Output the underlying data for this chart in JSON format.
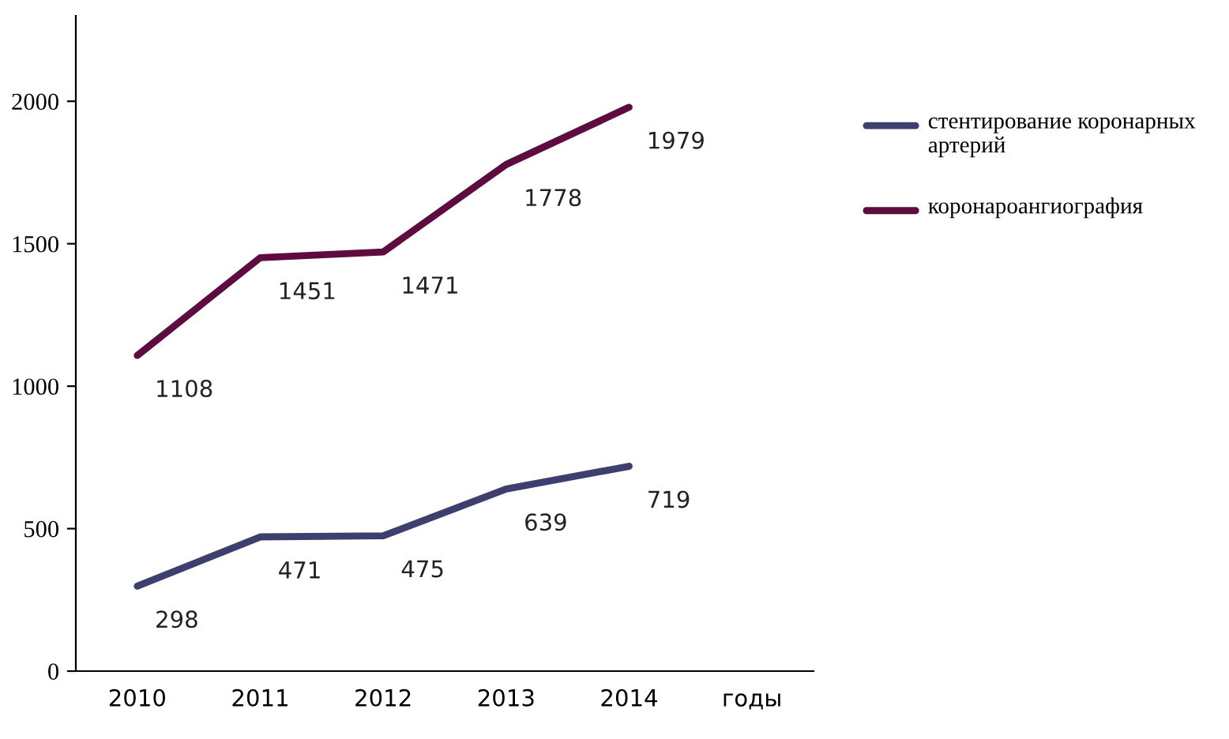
{
  "chart_data": {
    "type": "line",
    "xlabel": "годы",
    "categories": [
      "2010",
      "2011",
      "2012",
      "2013",
      "2014"
    ],
    "series": [
      {
        "name": "стентирование коронарных артерий",
        "color": "#3e3f6e",
        "values": [
          298,
          471,
          475,
          639,
          719
        ]
      },
      {
        "name": "коронароангиография",
        "color": "#5e0b40",
        "values": [
          1108,
          1451,
          1471,
          1778,
          1979
        ]
      }
    ],
    "ylim": [
      0,
      2300
    ],
    "yticks": [
      0,
      500,
      1000,
      1500,
      2000
    ],
    "grid": false,
    "legend": "right",
    "data_labels": true,
    "marker": "none",
    "line_style": "solid"
  }
}
